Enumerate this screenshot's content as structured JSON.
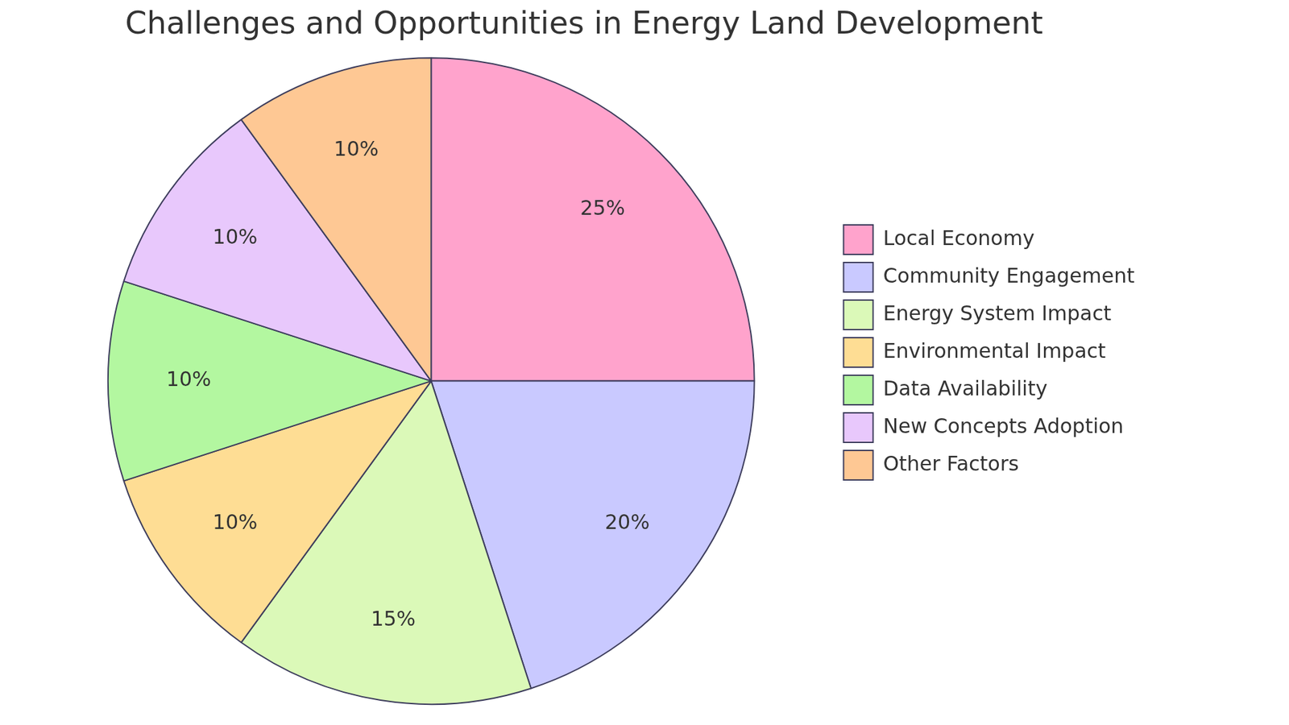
{
  "chart_data": {
    "type": "pie",
    "title": "Challenges and Opportunities in Energy Land Development",
    "categories": [
      "Local Economy",
      "Community Engagement",
      "Energy System Impact",
      "Environmental Impact",
      "Data Availability",
      "New Concepts Adoption",
      "Other Factors"
    ],
    "values": [
      25,
      20,
      15,
      10,
      10,
      10,
      10
    ],
    "value_labels": [
      "25%",
      "20%",
      "15%",
      "10%",
      "10%",
      "10%",
      "10%"
    ],
    "colors": [
      "#ffa3cc",
      "#c9c9ff",
      "#dbf9b8",
      "#fedd94",
      "#b3f7a0",
      "#e8c8fc",
      "#fec894"
    ],
    "data_labels": true,
    "legend": "right"
  }
}
